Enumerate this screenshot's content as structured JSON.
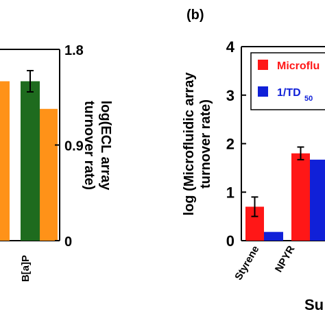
{
  "chart_data": [
    {
      "panel": "a",
      "type": "bar",
      "categories": [
        "",
        "B[a]P"
      ],
      "series": [
        {
          "color": "#1e6b1e",
          "values": [
            null,
            1.5
          ],
          "errors": [
            null,
            0.1
          ]
        },
        {
          "color": "#ff9218",
          "values": [
            1.5,
            1.24
          ],
          "errors": [
            null,
            null
          ]
        }
      ],
      "right_axis": {
        "label_lines": [
          "log(ECL array",
          "turnover rate)"
        ],
        "ylim": [
          0,
          1.8
        ],
        "ticks": [
          "0",
          "0.9",
          "1.8"
        ]
      }
    },
    {
      "panel": "b",
      "panel_label": "(b)",
      "type": "bar",
      "categories": [
        "Styrene",
        "NPYR",
        ""
      ],
      "series": [
        {
          "name": "Microfluidic",
          "color": "#ff1717",
          "values": [
            0.7,
            1.8,
            null
          ],
          "errors": [
            0.2,
            0.13,
            null
          ]
        },
        {
          "name": "1/TD50",
          "color": "#1020d8",
          "values": [
            0.18,
            1.67,
            null
          ],
          "errors": [
            null,
            null,
            null
          ]
        }
      ],
      "legend_position": "top-right",
      "legend_labels": [
        "Microflu",
        "1/TD",
        "50"
      ],
      "y_axis": {
        "label_lines": [
          "log (Microfluidic array",
          "turnover rate)"
        ],
        "ylim": [
          0,
          4
        ],
        "ticks": [
          "0",
          "1",
          "2",
          "3",
          "4"
        ]
      },
      "xlabel_fragment": "Su"
    }
  ]
}
